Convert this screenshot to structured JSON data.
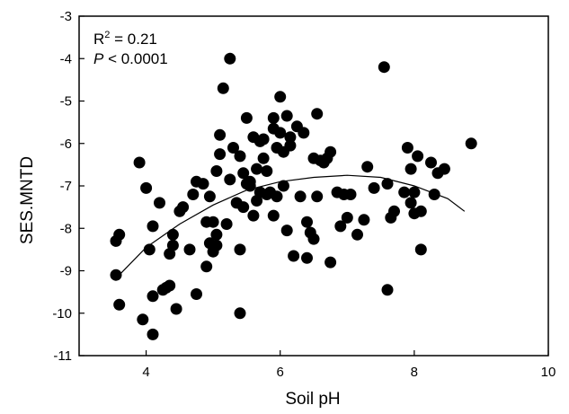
{
  "chart_data": {
    "type": "scatter",
    "xlabel": "Soil pH",
    "ylabel": "SES.MNTD",
    "xlim": [
      3,
      10
    ],
    "ylim": [
      -11,
      -3
    ],
    "x_ticks": [
      4,
      6,
      8,
      10
    ],
    "y_ticks": [
      -11,
      -10,
      -9,
      -8,
      -7,
      -6,
      -5,
      -4,
      -3
    ],
    "grid": false,
    "annotations": {
      "r2_prefix": "R",
      "r2_sup": "2",
      "r2_value": " = 0.21",
      "p_symbol": "P",
      "p_value": " < 0.0001"
    },
    "fit_curve": {
      "type": "quadratic",
      "points": [
        {
          "x": 3.6,
          "y": -9.1
        },
        {
          "x": 4.0,
          "y": -8.45
        },
        {
          "x": 4.5,
          "y": -7.9
        },
        {
          "x": 5.0,
          "y": -7.45
        },
        {
          "x": 5.5,
          "y": -7.1
        },
        {
          "x": 6.0,
          "y": -6.9
        },
        {
          "x": 6.5,
          "y": -6.8
        },
        {
          "x": 7.0,
          "y": -6.75
        },
        {
          "x": 7.5,
          "y": -6.8
        },
        {
          "x": 8.0,
          "y": -7.0
        },
        {
          "x": 8.5,
          "y": -7.3
        },
        {
          "x": 8.75,
          "y": -7.6
        }
      ]
    },
    "points": [
      {
        "x": 3.55,
        "y": -9.1
      },
      {
        "x": 3.55,
        "y": -8.3
      },
      {
        "x": 3.6,
        "y": -8.15
      },
      {
        "x": 3.6,
        "y": -9.8
      },
      {
        "x": 3.9,
        "y": -6.45
      },
      {
        "x": 3.95,
        "y": -10.15
      },
      {
        "x": 4.0,
        "y": -7.05
      },
      {
        "x": 4.05,
        "y": -8.5
      },
      {
        "x": 4.1,
        "y": -10.5
      },
      {
        "x": 4.1,
        "y": -7.95
      },
      {
        "x": 4.1,
        "y": -9.6
      },
      {
        "x": 4.2,
        "y": -7.4
      },
      {
        "x": 4.25,
        "y": -9.45
      },
      {
        "x": 4.3,
        "y": -9.4
      },
      {
        "x": 4.35,
        "y": -9.35
      },
      {
        "x": 4.35,
        "y": -8.6
      },
      {
        "x": 4.4,
        "y": -8.15
      },
      {
        "x": 4.4,
        "y": -8.4
      },
      {
        "x": 4.45,
        "y": -9.9
      },
      {
        "x": 4.5,
        "y": -7.6
      },
      {
        "x": 4.55,
        "y": -7.5
      },
      {
        "x": 4.65,
        "y": -8.5
      },
      {
        "x": 4.7,
        "y": -7.2
      },
      {
        "x": 4.75,
        "y": -9.55
      },
      {
        "x": 4.75,
        "y": -6.9
      },
      {
        "x": 4.85,
        "y": -6.95
      },
      {
        "x": 4.9,
        "y": -7.85
      },
      {
        "x": 4.9,
        "y": -8.9
      },
      {
        "x": 4.95,
        "y": -7.25
      },
      {
        "x": 4.95,
        "y": -8.35
      },
      {
        "x": 5.0,
        "y": -7.85
      },
      {
        "x": 5.0,
        "y": -8.55
      },
      {
        "x": 5.05,
        "y": -8.15
      },
      {
        "x": 5.05,
        "y": -8.4
      },
      {
        "x": 5.05,
        "y": -6.65
      },
      {
        "x": 5.1,
        "y": -6.25
      },
      {
        "x": 5.1,
        "y": -5.8
      },
      {
        "x": 5.15,
        "y": -4.7
      },
      {
        "x": 5.2,
        "y": -7.9
      },
      {
        "x": 5.25,
        "y": -4.0
      },
      {
        "x": 5.25,
        "y": -6.85
      },
      {
        "x": 5.3,
        "y": -6.1
      },
      {
        "x": 5.35,
        "y": -7.4
      },
      {
        "x": 5.4,
        "y": -8.5
      },
      {
        "x": 5.4,
        "y": -10.0
      },
      {
        "x": 5.4,
        "y": -6.3
      },
      {
        "x": 5.45,
        "y": -7.5
      },
      {
        "x": 5.45,
        "y": -6.7
      },
      {
        "x": 5.5,
        "y": -6.95
      },
      {
        "x": 5.5,
        "y": -5.4
      },
      {
        "x": 5.55,
        "y": -7.0
      },
      {
        "x": 5.55,
        "y": -6.9
      },
      {
        "x": 5.6,
        "y": -5.85
      },
      {
        "x": 5.6,
        "y": -7.7
      },
      {
        "x": 5.65,
        "y": -6.6
      },
      {
        "x": 5.65,
        "y": -7.35
      },
      {
        "x": 5.7,
        "y": -7.15
      },
      {
        "x": 5.7,
        "y": -5.95
      },
      {
        "x": 5.75,
        "y": -5.9
      },
      {
        "x": 5.75,
        "y": -6.35
      },
      {
        "x": 5.8,
        "y": -7.2
      },
      {
        "x": 5.8,
        "y": -6.65
      },
      {
        "x": 5.85,
        "y": -7.15
      },
      {
        "x": 5.9,
        "y": -7.7
      },
      {
        "x": 5.9,
        "y": -5.4
      },
      {
        "x": 5.9,
        "y": -5.65
      },
      {
        "x": 5.95,
        "y": -6.1
      },
      {
        "x": 5.95,
        "y": -7.25
      },
      {
        "x": 6.0,
        "y": -4.9
      },
      {
        "x": 6.0,
        "y": -5.75
      },
      {
        "x": 6.05,
        "y": -7.0
      },
      {
        "x": 6.05,
        "y": -6.2
      },
      {
        "x": 6.1,
        "y": -5.35
      },
      {
        "x": 6.1,
        "y": -8.05
      },
      {
        "x": 6.15,
        "y": -5.85
      },
      {
        "x": 6.15,
        "y": -6.05
      },
      {
        "x": 6.2,
        "y": -8.65
      },
      {
        "x": 6.25,
        "y": -5.6
      },
      {
        "x": 6.3,
        "y": -7.25
      },
      {
        "x": 6.35,
        "y": -5.75
      },
      {
        "x": 6.4,
        "y": -8.7
      },
      {
        "x": 6.4,
        "y": -7.85
      },
      {
        "x": 6.45,
        "y": -8.1
      },
      {
        "x": 6.5,
        "y": -6.35
      },
      {
        "x": 6.5,
        "y": -8.25
      },
      {
        "x": 6.55,
        "y": -5.3
      },
      {
        "x": 6.55,
        "y": -7.25
      },
      {
        "x": 6.6,
        "y": -6.4
      },
      {
        "x": 6.65,
        "y": -6.45
      },
      {
        "x": 6.7,
        "y": -6.35
      },
      {
        "x": 6.75,
        "y": -8.8
      },
      {
        "x": 6.75,
        "y": -6.2
      },
      {
        "x": 6.85,
        "y": -7.15
      },
      {
        "x": 6.9,
        "y": -7.95
      },
      {
        "x": 6.95,
        "y": -7.2
      },
      {
        "x": 7.0,
        "y": -7.75
      },
      {
        "x": 7.05,
        "y": -7.2
      },
      {
        "x": 7.15,
        "y": -8.15
      },
      {
        "x": 7.25,
        "y": -7.8
      },
      {
        "x": 7.3,
        "y": -6.55
      },
      {
        "x": 7.4,
        "y": -7.05
      },
      {
        "x": 7.55,
        "y": -4.2
      },
      {
        "x": 7.6,
        "y": -6.95
      },
      {
        "x": 7.6,
        "y": -9.45
      },
      {
        "x": 7.65,
        "y": -7.75
      },
      {
        "x": 7.7,
        "y": -7.6
      },
      {
        "x": 7.85,
        "y": -7.15
      },
      {
        "x": 7.9,
        "y": -6.1
      },
      {
        "x": 7.95,
        "y": -6.6
      },
      {
        "x": 7.95,
        "y": -7.4
      },
      {
        "x": 8.0,
        "y": -7.65
      },
      {
        "x": 8.0,
        "y": -7.15
      },
      {
        "x": 8.05,
        "y": -6.3
      },
      {
        "x": 8.1,
        "y": -7.6
      },
      {
        "x": 8.1,
        "y": -8.5
      },
      {
        "x": 8.25,
        "y": -6.45
      },
      {
        "x": 8.3,
        "y": -7.2
      },
      {
        "x": 8.35,
        "y": -6.7
      },
      {
        "x": 8.45,
        "y": -6.6
      },
      {
        "x": 8.85,
        "y": -6.0
      }
    ]
  }
}
